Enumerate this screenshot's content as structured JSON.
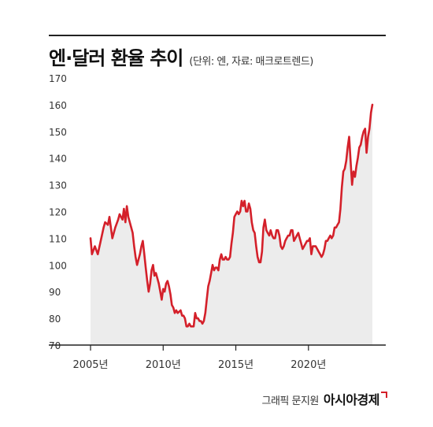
{
  "header": {
    "title": "엔·달러 환율 추이",
    "subtitle": "(단위: 엔, 자료: 매크로트렌드)"
  },
  "footer": {
    "credit": "그래픽 문지원",
    "publisher": "아시아경제"
  },
  "colors": {
    "line": "#d4202a",
    "area": "#ececec",
    "axis": "#222222"
  },
  "chart_data": {
    "type": "area",
    "title": "엔·달러 환율 추이",
    "ylim": [
      70,
      170
    ],
    "xlim": [
      2005.0,
      2024.4
    ],
    "yticks": [
      70,
      80,
      90,
      100,
      110,
      120,
      130,
      140,
      150,
      160,
      170
    ],
    "xticks": [
      {
        "value": 2005,
        "label": "2005년"
      },
      {
        "value": 2010,
        "label": "2010년"
      },
      {
        "value": 2015,
        "label": "2015년"
      },
      {
        "value": 2020,
        "label": "2020년"
      }
    ],
    "grid": false,
    "legend": "none",
    "series": [
      {
        "points": [
          [
            2005.0,
            110
          ],
          [
            2005.1,
            104
          ],
          [
            2005.3,
            107
          ],
          [
            2005.5,
            104
          ],
          [
            2005.7,
            109
          ],
          [
            2005.9,
            114
          ],
          [
            2006.0,
            116
          ],
          [
            2006.2,
            115
          ],
          [
            2006.3,
            118
          ],
          [
            2006.5,
            110
          ],
          [
            2006.7,
            114
          ],
          [
            2006.9,
            117
          ],
          [
            2007.0,
            119
          ],
          [
            2007.2,
            117
          ],
          [
            2007.3,
            121
          ],
          [
            2007.4,
            116
          ],
          [
            2007.5,
            122
          ],
          [
            2007.6,
            118
          ],
          [
            2007.8,
            114
          ],
          [
            2007.9,
            112
          ],
          [
            2008.0,
            107
          ],
          [
            2008.1,
            103
          ],
          [
            2008.2,
            100
          ],
          [
            2008.4,
            104
          ],
          [
            2008.5,
            107
          ],
          [
            2008.6,
            109
          ],
          [
            2008.7,
            104
          ],
          [
            2008.8,
            99
          ],
          [
            2008.9,
            94
          ],
          [
            2009.0,
            90
          ],
          [
            2009.1,
            93
          ],
          [
            2009.2,
            98
          ],
          [
            2009.3,
            100
          ],
          [
            2009.4,
            96
          ],
          [
            2009.5,
            97
          ],
          [
            2009.6,
            95
          ],
          [
            2009.7,
            93
          ],
          [
            2009.8,
            90
          ],
          [
            2009.9,
            87
          ],
          [
            2010.0,
            91
          ],
          [
            2010.1,
            90
          ],
          [
            2010.2,
            93
          ],
          [
            2010.3,
            94
          ],
          [
            2010.4,
            92
          ],
          [
            2010.5,
            89
          ],
          [
            2010.6,
            85
          ],
          [
            2010.7,
            84
          ],
          [
            2010.8,
            82
          ],
          [
            2010.9,
            83
          ],
          [
            2011.0,
            82
          ],
          [
            2011.2,
            83
          ],
          [
            2011.3,
            81
          ],
          [
            2011.4,
            81
          ],
          [
            2011.5,
            80
          ],
          [
            2011.6,
            77
          ],
          [
            2011.7,
            77
          ],
          [
            2011.8,
            78
          ],
          [
            2011.9,
            77
          ],
          [
            2012.0,
            77
          ],
          [
            2012.1,
            77
          ],
          [
            2012.2,
            82
          ],
          [
            2012.3,
            80
          ],
          [
            2012.4,
            80
          ],
          [
            2012.5,
            79
          ],
          [
            2012.6,
            79
          ],
          [
            2012.7,
            78
          ],
          [
            2012.8,
            79
          ],
          [
            2012.9,
            82
          ],
          [
            2013.0,
            87
          ],
          [
            2013.1,
            92
          ],
          [
            2013.2,
            94
          ],
          [
            2013.3,
            97
          ],
          [
            2013.4,
            100
          ],
          [
            2013.5,
            98
          ],
          [
            2013.6,
            99
          ],
          [
            2013.7,
            99
          ],
          [
            2013.8,
            98
          ],
          [
            2013.9,
            102
          ],
          [
            2014.0,
            104
          ],
          [
            2014.1,
            102
          ],
          [
            2014.2,
            102
          ],
          [
            2014.3,
            103
          ],
          [
            2014.4,
            102
          ],
          [
            2014.5,
            102
          ],
          [
            2014.6,
            103
          ],
          [
            2014.7,
            108
          ],
          [
            2014.8,
            112
          ],
          [
            2014.9,
            118
          ],
          [
            2015.0,
            119
          ],
          [
            2015.1,
            120
          ],
          [
            2015.2,
            119
          ],
          [
            2015.3,
            120
          ],
          [
            2015.4,
            124
          ],
          [
            2015.5,
            122
          ],
          [
            2015.6,
            124
          ],
          [
            2015.7,
            120
          ],
          [
            2015.8,
            120
          ],
          [
            2015.9,
            123
          ],
          [
            2016.0,
            121
          ],
          [
            2016.1,
            116
          ],
          [
            2016.2,
            113
          ],
          [
            2016.3,
            112
          ],
          [
            2016.4,
            107
          ],
          [
            2016.5,
            103
          ],
          [
            2016.6,
            101
          ],
          [
            2016.7,
            101
          ],
          [
            2016.8,
            105
          ],
          [
            2016.9,
            114
          ],
          [
            2017.0,
            117
          ],
          [
            2017.1,
            113
          ],
          [
            2017.2,
            112
          ],
          [
            2017.3,
            111
          ],
          [
            2017.4,
            113
          ],
          [
            2017.5,
            111
          ],
          [
            2017.6,
            110
          ],
          [
            2017.7,
            110
          ],
          [
            2017.8,
            113
          ],
          [
            2017.9,
            113
          ],
          [
            2018.0,
            111
          ],
          [
            2018.1,
            107
          ],
          [
            2018.2,
            106
          ],
          [
            2018.3,
            107
          ],
          [
            2018.4,
            109
          ],
          [
            2018.5,
            110
          ],
          [
            2018.6,
            111
          ],
          [
            2018.7,
            111
          ],
          [
            2018.8,
            113
          ],
          [
            2018.9,
            113
          ],
          [
            2019.0,
            109
          ],
          [
            2019.1,
            110
          ],
          [
            2019.2,
            111
          ],
          [
            2019.3,
            112
          ],
          [
            2019.4,
            110
          ],
          [
            2019.5,
            108
          ],
          [
            2019.6,
            106
          ],
          [
            2019.7,
            107
          ],
          [
            2019.8,
            108
          ],
          [
            2019.9,
            109
          ],
          [
            2020.0,
            109
          ],
          [
            2020.1,
            110
          ],
          [
            2020.2,
            104
          ],
          [
            2020.3,
            107
          ],
          [
            2020.4,
            107
          ],
          [
            2020.5,
            107
          ],
          [
            2020.6,
            106
          ],
          [
            2020.7,
            105
          ],
          [
            2020.8,
            104
          ],
          [
            2020.9,
            103
          ],
          [
            2021.0,
            104
          ],
          [
            2021.1,
            106
          ],
          [
            2021.2,
            109
          ],
          [
            2021.3,
            109
          ],
          [
            2021.4,
            110
          ],
          [
            2021.5,
            111
          ],
          [
            2021.6,
            110
          ],
          [
            2021.7,
            111
          ],
          [
            2021.8,
            114
          ],
          [
            2021.9,
            114
          ],
          [
            2022.0,
            115
          ],
          [
            2022.1,
            116
          ],
          [
            2022.2,
            121
          ],
          [
            2022.3,
            129
          ],
          [
            2022.4,
            135
          ],
          [
            2022.5,
            136
          ],
          [
            2022.6,
            139
          ],
          [
            2022.7,
            144
          ],
          [
            2022.8,
            148
          ],
          [
            2022.9,
            139
          ],
          [
            2023.0,
            130
          ],
          [
            2023.1,
            135
          ],
          [
            2023.2,
            133
          ],
          [
            2023.3,
            137
          ],
          [
            2023.4,
            140
          ],
          [
            2023.5,
            144
          ],
          [
            2023.6,
            145
          ],
          [
            2023.7,
            148
          ],
          [
            2023.8,
            150
          ],
          [
            2023.9,
            151
          ],
          [
            2024.0,
            142
          ],
          [
            2024.1,
            148
          ],
          [
            2024.2,
            151
          ],
          [
            2024.3,
            157
          ],
          [
            2024.4,
            160
          ]
        ]
      }
    ]
  }
}
